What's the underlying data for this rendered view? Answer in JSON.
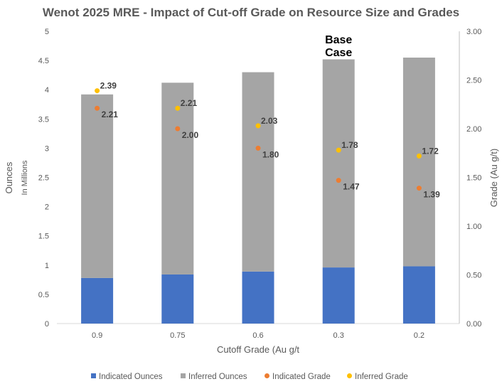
{
  "chart_data": {
    "type": "bar",
    "stacked": true,
    "title": "Wenot 2025 MRE - Impact of Cut-off Grade on Resource Size and Grades",
    "xlabel": "Cutoff Grade (Au g/t",
    "ylabel": "Ounces",
    "ylabel_sub": "In Millions",
    "y2label": "Grade (Au g/t)",
    "categories": [
      "0.9",
      "0.75",
      "0.6",
      "0.3",
      "0.2"
    ],
    "ylim": [
      0,
      5
    ],
    "yticks": [
      "0",
      "0.5",
      "1",
      "1.5",
      "2",
      "2.5",
      "3",
      "3.5",
      "4",
      "4.5",
      "5"
    ],
    "y2lim": [
      0,
      3
    ],
    "y2ticks": [
      "0.00",
      "0.50",
      "1.00",
      "1.50",
      "2.00",
      "2.50",
      "3.00"
    ],
    "series": [
      {
        "name": "Indicated Ounces",
        "kind": "bar",
        "axis": "left",
        "color": "#4472C4",
        "values": [
          0.78,
          0.84,
          0.89,
          0.96,
          0.98
        ]
      },
      {
        "name": "Inferred Ounces",
        "kind": "bar",
        "axis": "left",
        "color": "#A5A5A5",
        "values": [
          3.14,
          3.28,
          3.41,
          3.56,
          3.57
        ]
      },
      {
        "name": "Indicated Grade",
        "kind": "point",
        "axis": "right",
        "color": "#ED7D31",
        "values": [
          2.21,
          2.0,
          1.8,
          1.47,
          1.39
        ],
        "labels": [
          "2.21",
          "2.00",
          "1.80",
          "1.47",
          "1.39"
        ]
      },
      {
        "name": "Inferred Grade",
        "kind": "point",
        "axis": "right",
        "color": "#FFC000",
        "values": [
          2.39,
          2.21,
          2.03,
          1.78,
          1.72
        ],
        "labels": [
          "2.39",
          "2.21",
          "2.03",
          "1.78",
          "1.72"
        ]
      }
    ],
    "annotation": {
      "lines": [
        "Base",
        "Case"
      ],
      "category_index": 3
    },
    "legend_position": "bottom",
    "grid": false
  }
}
